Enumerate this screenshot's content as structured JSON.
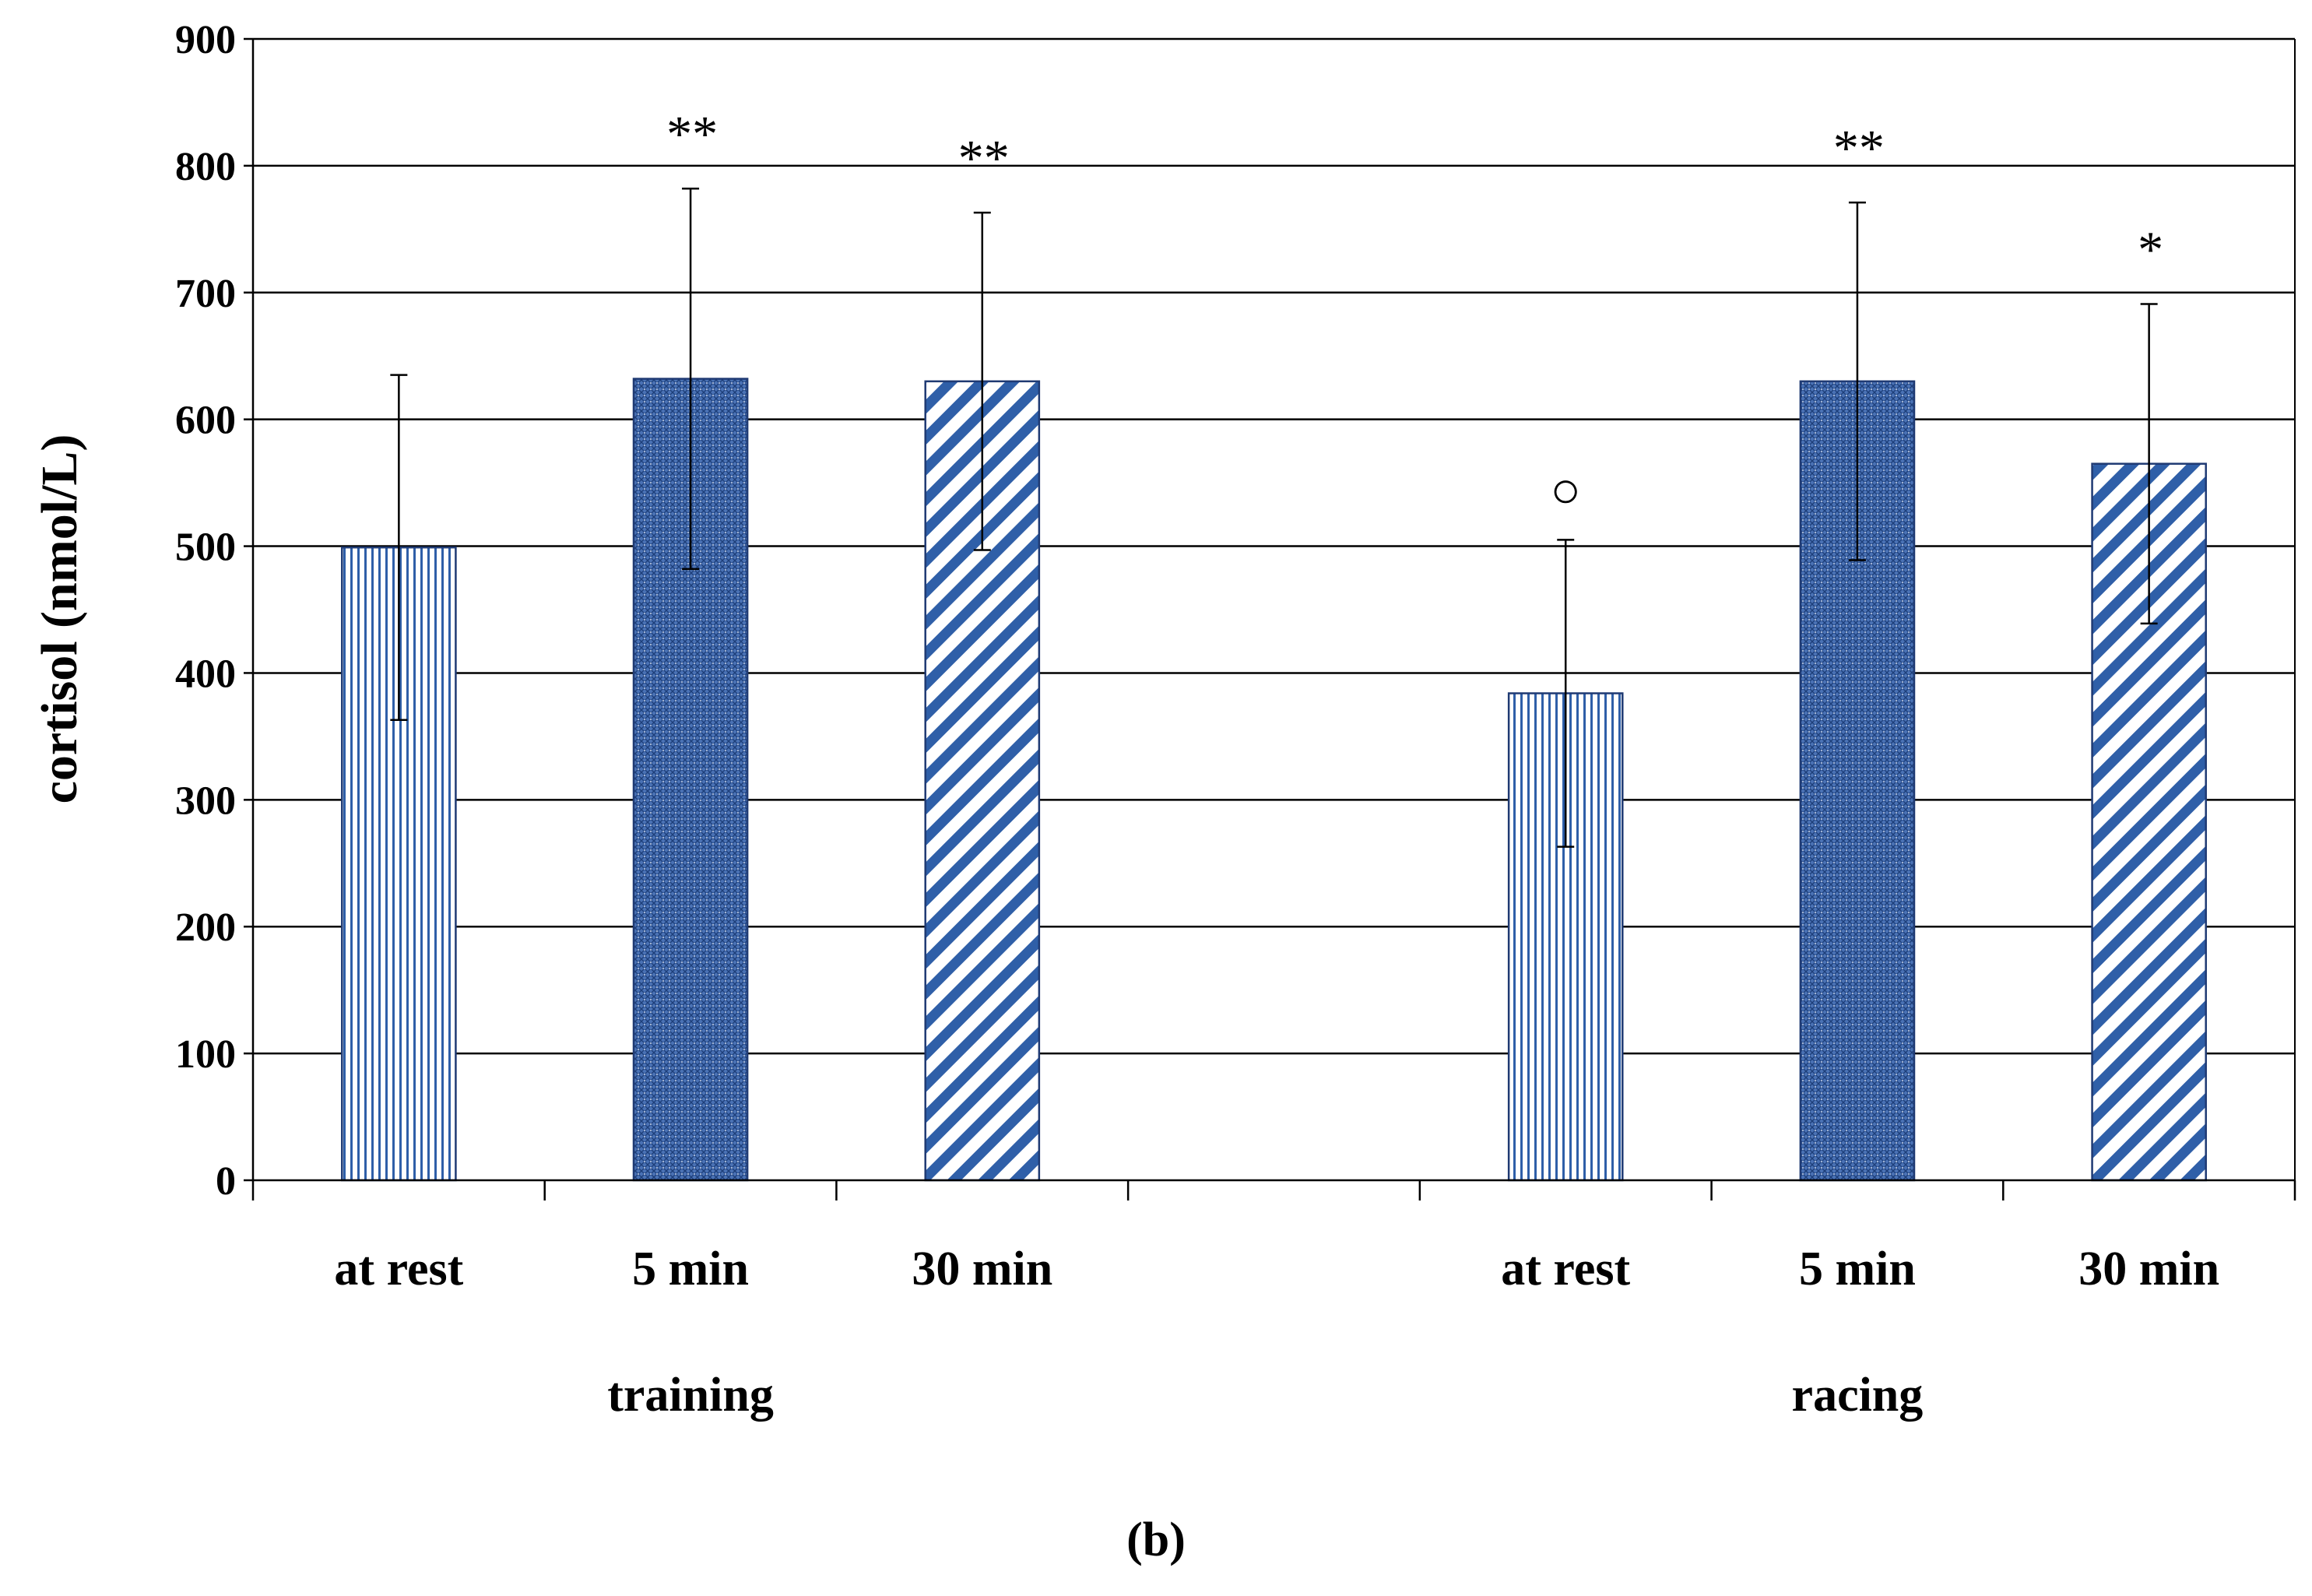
{
  "chart_data": {
    "type": "bar",
    "ylabel": "cortisol (nmol/L)",
    "ylim": [
      0,
      900
    ],
    "yticks": [
      0,
      100,
      200,
      300,
      400,
      500,
      600,
      700,
      800,
      900
    ],
    "grid": true,
    "panel_label": "(b)",
    "groups": [
      {
        "name": "training",
        "bars": [
          {
            "label": "at rest",
            "value": 499,
            "error": 136,
            "pattern": "vertical",
            "annotation": ""
          },
          {
            "label": "5 min",
            "value": 632,
            "error": 150,
            "pattern": "crosshatch",
            "annotation": "**"
          },
          {
            "label": "30 min",
            "value": 630,
            "error": 133,
            "pattern": "diagonal",
            "annotation": "**"
          }
        ]
      },
      {
        "name": "racing",
        "bars": [
          {
            "label": "at rest",
            "value": 384,
            "error": 121,
            "pattern": "vertical",
            "annotation": "○"
          },
          {
            "label": "5 min",
            "value": 630,
            "error": 141,
            "pattern": "crosshatch",
            "annotation": "**"
          },
          {
            "label": "30 min",
            "value": 565,
            "error": 126,
            "pattern": "diagonal",
            "annotation": "*"
          }
        ]
      }
    ],
    "colors": {
      "bar_stroke": "#1f3a73",
      "pattern_blue": "#2f5fa8",
      "grid": "#000000"
    }
  }
}
